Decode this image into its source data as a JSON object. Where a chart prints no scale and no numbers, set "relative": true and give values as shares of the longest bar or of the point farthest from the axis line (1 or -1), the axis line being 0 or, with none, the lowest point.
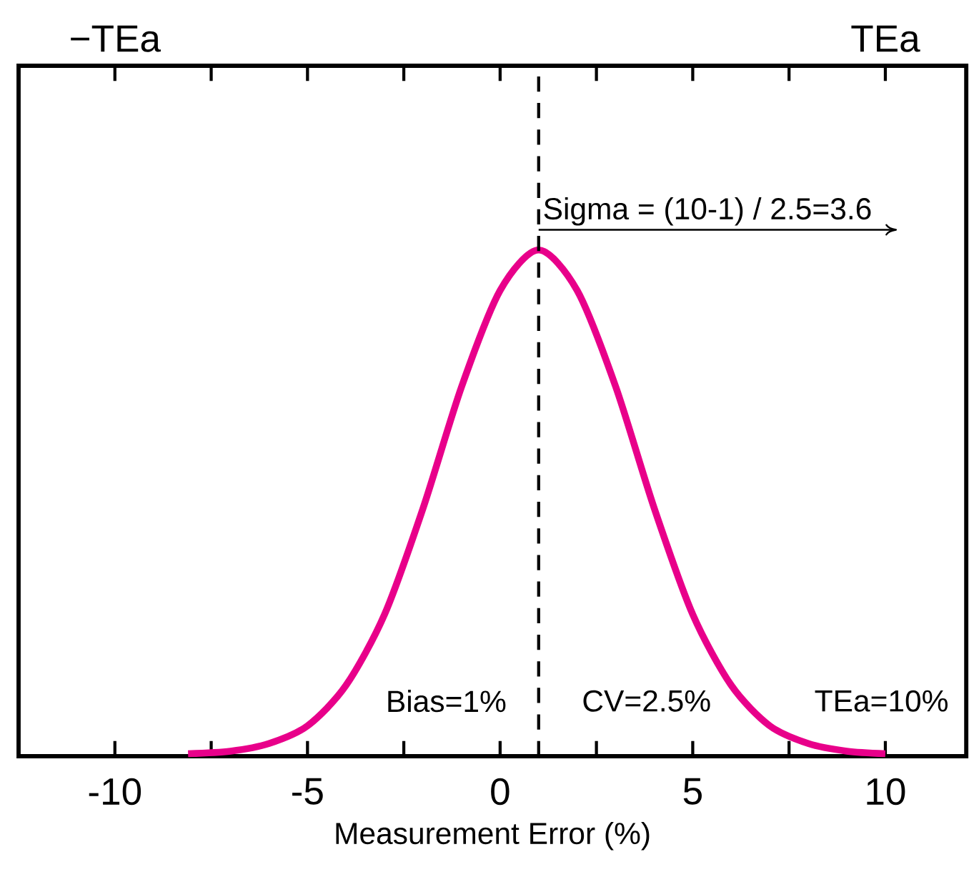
{
  "chart_data": {
    "type": "line",
    "relative": true,
    "xlabel": "Measurement Error (%)",
    "xlim": [
      -12.5,
      12.1
    ],
    "xticks": [
      -10,
      {
        "value": -7.5,
        "label": null
      },
      -5,
      {
        "value": -2.5,
        "label": null
      },
      0,
      {
        "value": 2.5,
        "label": null
      },
      5,
      {
        "value": 7.5,
        "label": null
      },
      10
    ],
    "series": [
      {
        "color": "#e8008a",
        "x": [
          -8.1,
          -7,
          -6,
          -5,
          -4,
          -3,
          -2,
          -1,
          0,
          1,
          2,
          3,
          4,
          5,
          6,
          7,
          8,
          9,
          10
        ],
        "values": [
          0.005,
          0.01,
          0.025,
          0.06,
          0.14,
          0.28,
          0.49,
          0.73,
          0.92,
          1,
          0.92,
          0.73,
          0.49,
          0.28,
          0.14,
          0.06,
          0.025,
          0.01,
          0.005
        ]
      }
    ],
    "ref_lines": [
      {
        "axis": "x",
        "value": 1,
        "color": "#000000",
        "line_style": "dashed"
      }
    ],
    "annotations": [
      {
        "text": "Sigma = (10-1) / 2.5=3.6",
        "x": 1,
        "y": 1.04
      },
      "−TEa",
      "TEa",
      "Bias=1%",
      "CV=2.5%",
      "TEa=10%"
    ]
  }
}
